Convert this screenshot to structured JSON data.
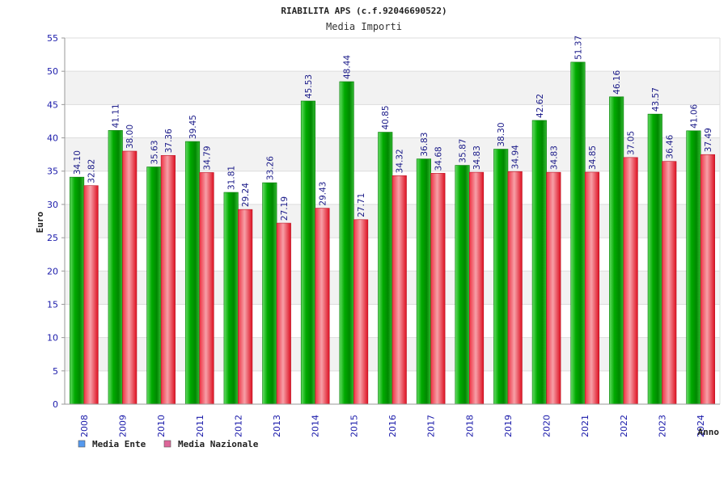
{
  "chart_data": {
    "type": "bar",
    "title": "RIABILITA APS (c.f.92046690522)",
    "subtitle": "Media Importi",
    "xlabel": "Anno",
    "ylabel": "Euro",
    "ylim": [
      0,
      55
    ],
    "yticks": [
      0,
      5,
      10,
      15,
      20,
      25,
      30,
      35,
      40,
      45,
      50,
      55
    ],
    "grid": true,
    "legend_position": "bottom-left",
    "categories": [
      "2008",
      "2009",
      "2010",
      "2011",
      "2012",
      "2013",
      "2014",
      "2015",
      "2016",
      "2017",
      "2018",
      "2019",
      "2020",
      "2021",
      "2022",
      "2023",
      "2024"
    ],
    "series": [
      {
        "name": "Media Ente",
        "color": "#00aa00",
        "legend_color": "#5599ee",
        "values": [
          34.1,
          41.11,
          35.63,
          39.45,
          31.81,
          33.26,
          45.53,
          48.44,
          40.85,
          36.83,
          35.87,
          38.3,
          42.62,
          51.37,
          46.16,
          43.57,
          41.06
        ],
        "labels": [
          "34.10",
          "41.11",
          "35.63",
          "39.45",
          "31.81",
          "33.26",
          "45.53",
          "48.44",
          "40.85",
          "36.83",
          "35.87",
          "38.30",
          "42.62",
          "51.37",
          "46.16",
          "43.57",
          "41.06"
        ]
      },
      {
        "name": "Media Nazionale",
        "color": "#ee2233",
        "legend_color": "#dd6699",
        "values": [
          32.82,
          38.0,
          37.36,
          34.79,
          29.24,
          27.19,
          29.43,
          27.71,
          34.32,
          34.68,
          34.83,
          34.94,
          34.83,
          34.85,
          37.05,
          36.46,
          37.49
        ],
        "labels": [
          "32.82",
          "38.00",
          "37.36",
          "34.79",
          "29.24",
          "27.19",
          "29.43",
          "27.71",
          "34.32",
          "34.68",
          "34.83",
          "34.94",
          "34.83",
          "34.85",
          "37.05",
          "36.46",
          "37.49"
        ]
      }
    ]
  }
}
